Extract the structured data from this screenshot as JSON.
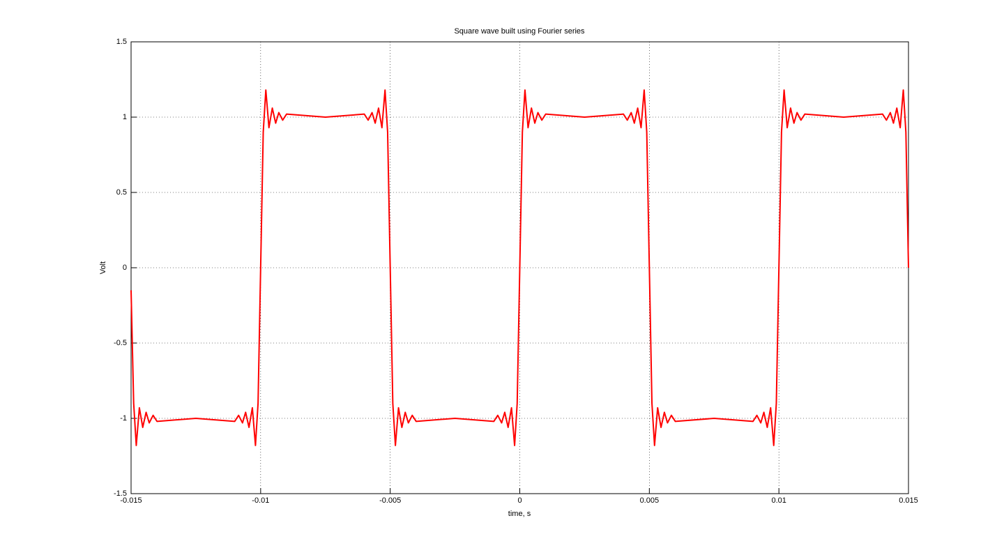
{
  "chart_data": {
    "type": "line",
    "title": "Square wave built using Fourier series",
    "x_label": "time, s",
    "y_label": "Volt",
    "x": [
      -0.015,
      -0.0149,
      -0.0148,
      -0.01468,
      -0.01455,
      -0.01442,
      -0.0143,
      -0.01415,
      -0.014,
      -0.0125,
      -0.011,
      -0.01085,
      -0.0107,
      -0.01058,
      -0.01045,
      -0.01032,
      -0.0102,
      -0.0101,
      -0.01,
      -0.0099,
      -0.0098,
      -0.00968,
      -0.00955,
      -0.00942,
      -0.0093,
      -0.00915,
      -0.009,
      -0.0075,
      -0.006,
      -0.00585,
      -0.0057,
      -0.00558,
      -0.00545,
      -0.00532,
      -0.0052,
      -0.0051,
      -0.005,
      -0.0049,
      -0.0048,
      -0.00468,
      -0.00455,
      -0.00442,
      -0.0043,
      -0.00415,
      -0.004,
      -0.0025,
      -0.001,
      -0.00085,
      -0.0007,
      -0.00058,
      -0.00045,
      -0.00032,
      -0.0002,
      -0.0001,
      0,
      0.0001,
      0.0002,
      0.00032,
      0.00045,
      0.00058,
      0.0007,
      0.00085,
      0.001,
      0.0025,
      0.004,
      0.00415,
      0.0043,
      0.00442,
      0.00455,
      0.00468,
      0.0048,
      0.0049,
      0.005,
      0.0051,
      0.0052,
      0.00532,
      0.00545,
      0.00558,
      0.0057,
      0.00585,
      0.006,
      0.0075,
      0.009,
      0.00915,
      0.0093,
      0.00942,
      0.00955,
      0.00968,
      0.0098,
      0.0099,
      0.01,
      0.0101,
      0.0102,
      0.01032,
      0.01045,
      0.01058,
      0.0107,
      0.01085,
      0.011,
      0.0125,
      0.014,
      0.01415,
      0.0143,
      0.01442,
      0.01455,
      0.01468,
      0.0148,
      0.0149,
      0.015
    ],
    "series": [
      {
        "color": "#ff0000",
        "values": [
          -0.15,
          -0.9,
          -1.18,
          -0.93,
          -1.06,
          -0.96,
          -1.03,
          -0.98,
          -1.02,
          -1.0,
          -1.02,
          -0.98,
          -1.03,
          -0.96,
          -1.06,
          -0.93,
          -1.18,
          -0.9,
          0,
          0.9,
          1.18,
          0.93,
          1.06,
          0.96,
          1.03,
          0.98,
          1.02,
          1.0,
          1.02,
          0.98,
          1.03,
          0.96,
          1.06,
          0.93,
          1.18,
          0.9,
          0,
          -0.9,
          -1.18,
          -0.93,
          -1.06,
          -0.96,
          -1.03,
          -0.98,
          -1.02,
          -1.0,
          -1.02,
          -0.98,
          -1.03,
          -0.96,
          -1.06,
          -0.93,
          -1.18,
          -0.9,
          0,
          0.9,
          1.18,
          0.93,
          1.06,
          0.96,
          1.03,
          0.98,
          1.02,
          1.0,
          1.02,
          0.98,
          1.03,
          0.96,
          1.06,
          0.93,
          1.18,
          0.9,
          0,
          -0.9,
          -1.18,
          -0.93,
          -1.06,
          -0.96,
          -1.03,
          -0.98,
          -1.02,
          -1.0,
          -1.02,
          -0.98,
          -1.03,
          -0.96,
          -1.06,
          -0.93,
          -1.18,
          -0.9,
          0,
          0.9,
          1.18,
          0.93,
          1.06,
          0.96,
          1.03,
          0.98,
          1.02,
          1.0,
          1.02,
          0.98,
          1.03,
          0.96,
          1.06,
          0.93,
          1.18,
          0.9,
          0
        ]
      }
    ],
    "xlim": [
      -0.015,
      0.015
    ],
    "xticks": [
      -0.015,
      -0.01,
      -0.005,
      0,
      0.005,
      0.01,
      0.015
    ],
    "ylim": [
      -1.5,
      1.5
    ],
    "yticks": [
      -1.5,
      -1,
      -0.5,
      0,
      0.5,
      1,
      1.5
    ],
    "grid": true
  }
}
